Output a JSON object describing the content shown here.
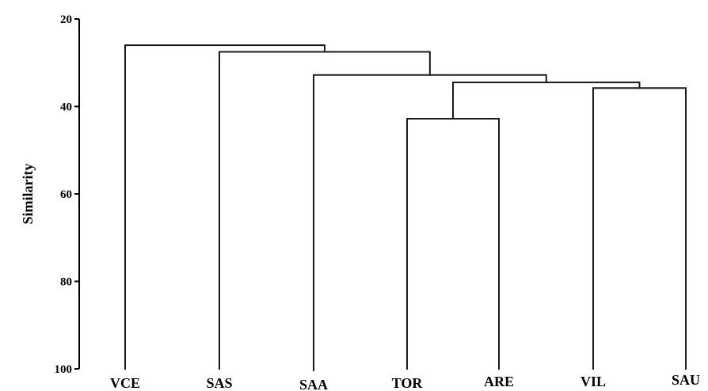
{
  "chart_data": {
    "type": "dendrogram",
    "title": "",
    "xlabel": "",
    "ylabel": "Similarity",
    "ylim": [
      20,
      100
    ],
    "yticks": [
      20,
      40,
      60,
      80,
      100
    ],
    "leaves": [
      "VCE",
      "SAS",
      "SAA",
      "TOR",
      "ARE",
      "VIL",
      "SAU"
    ],
    "merges": [
      {
        "left": "TOR",
        "right": "ARE",
        "similarity": 42.8
      },
      {
        "left": "VIL",
        "right": "SAU",
        "similarity": 35.8
      },
      {
        "left": "TOR+ARE",
        "right": "VIL+SAU",
        "similarity": 34.5
      },
      {
        "left": "SAA",
        "right": "TOR+ARE+VIL+SAU",
        "similarity": 32.8
      },
      {
        "left": "SAS",
        "right": "SAA+TOR+ARE+VIL+SAU",
        "similarity": 27.5
      },
      {
        "left": "VCE",
        "right": "SAS+SAA+TOR+ARE+VIL+SAU",
        "similarity": 26.0
      }
    ]
  }
}
